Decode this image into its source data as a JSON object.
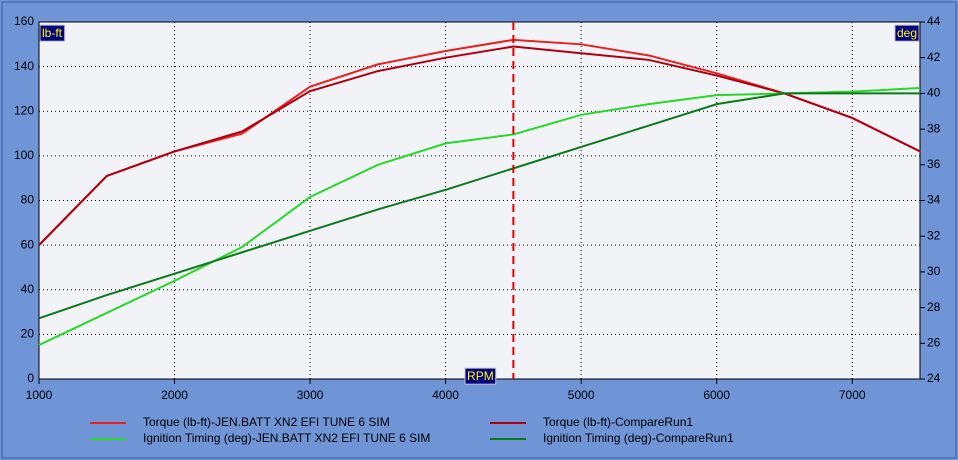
{
  "chart_data": {
    "type": "line",
    "y_label": "lb-ft",
    "y2_label": "deg",
    "x_label": "RPM",
    "x": [
      1000,
      1500,
      2000,
      2500,
      3000,
      3500,
      4000,
      4500,
      5000,
      5500,
      6000,
      6500,
      7000,
      7500
    ],
    "xlim": [
      1000,
      7500
    ],
    "xticks": [
      1000,
      2000,
      3000,
      4000,
      5000,
      6000,
      7000
    ],
    "ylim": [
      0,
      160
    ],
    "yticks": [
      0,
      20,
      40,
      60,
      80,
      100,
      120,
      140,
      160
    ],
    "y2lim": [
      24,
      44
    ],
    "y2ticks": [
      24,
      26,
      28,
      30,
      32,
      34,
      36,
      38,
      40,
      42,
      44
    ],
    "grid": true,
    "cursor_x": 4500,
    "series": [
      {
        "name": "Torque (lb-ft)-JEN.BATT XN2 EFI TUNE 6 SIM",
        "color": "#e82020",
        "values": [
          60,
          91,
          102,
          110,
          131,
          141,
          147,
          152,
          150,
          145,
          137,
          128,
          117,
          102
        ]
      },
      {
        "name": "Torque (lb-ft)-CompareRun1",
        "color": "#b00010",
        "values": [
          60,
          91,
          102,
          111,
          129,
          138,
          144,
          149,
          146,
          143,
          136,
          128,
          117,
          102
        ]
      },
      {
        "name": "Ignition Timing (deg)-JEN.BATT XN2 EFI TUNE 6 SIM",
        "color": "#28d828",
        "axis": "y2",
        "values": [
          25.9,
          27.7,
          29.5,
          31.4,
          34.2,
          36.0,
          37.2,
          37.7,
          38.8,
          39.4,
          39.9,
          40.0,
          40.1,
          40.3
        ]
      },
      {
        "name": "Ignition Timing (deg)-CompareRun1",
        "color": "#0a7a1a",
        "axis": "y2",
        "values": [
          27.4,
          28.7,
          29.9,
          31.1,
          32.3,
          33.5,
          34.6,
          35.8,
          37.0,
          38.2,
          39.4,
          40.0,
          40.0,
          40.0
        ]
      }
    ]
  }
}
